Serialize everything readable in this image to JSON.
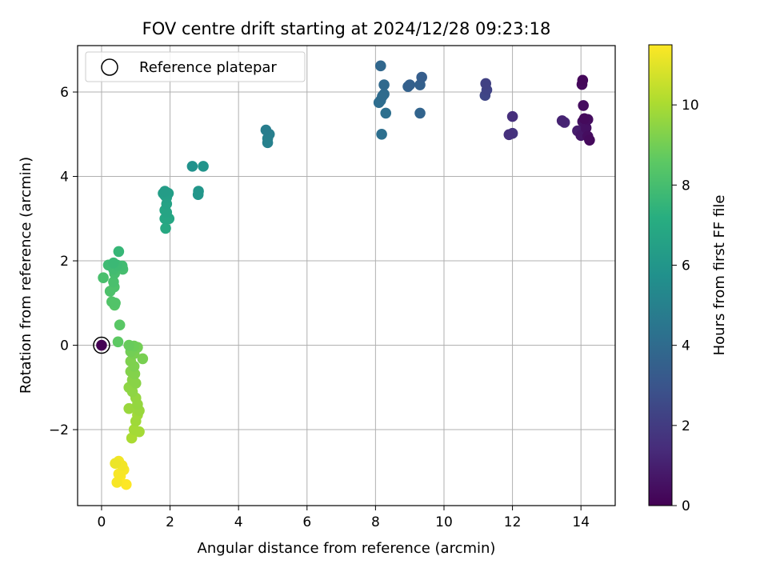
{
  "chart_data": {
    "type": "scatter",
    "title": "FOV centre drift starting at 2024/12/28 09:23:18",
    "xlabel": "Angular distance from reference (arcmin)",
    "ylabel": "Rotation from reference (arcmin)",
    "xlim": [
      -0.7,
      15.0
    ],
    "ylim": [
      -3.8,
      7.1
    ],
    "xticks": [
      0,
      2,
      4,
      6,
      8,
      10,
      12,
      14
    ],
    "xtick_labels": [
      "0",
      "2",
      "4",
      "6",
      "8",
      "10",
      "12",
      "14"
    ],
    "yticks": [
      -2,
      0,
      2,
      4,
      6
    ],
    "ytick_labels": [
      "−2",
      "0",
      "2",
      "4",
      "6"
    ],
    "grid": true,
    "legend": {
      "position": "upper-left",
      "label": "Reference platepar"
    },
    "reference_point": {
      "x": 0,
      "y": 0
    },
    "colorbar": {
      "label": "Hours from first FF file",
      "colormap": "viridis",
      "range": [
        0,
        11.5
      ],
      "ticks": [
        0,
        2,
        4,
        6,
        8,
        10
      ],
      "tick_labels": [
        "0",
        "2",
        "4",
        "6",
        "8",
        "10"
      ]
    },
    "points": [
      {
        "x": 14.05,
        "y": 6.28,
        "h": 0.2
      },
      {
        "x": 14.03,
        "y": 6.18,
        "h": 0.3
      },
      {
        "x": 14.07,
        "y": 5.68,
        "h": 0.4
      },
      {
        "x": 14.1,
        "y": 5.37,
        "h": 0.3
      },
      {
        "x": 14.2,
        "y": 5.35,
        "h": 0.4
      },
      {
        "x": 14.05,
        "y": 5.3,
        "h": 0.6
      },
      {
        "x": 14.15,
        "y": 5.15,
        "h": 0.5
      },
      {
        "x": 13.9,
        "y": 5.08,
        "h": 0.9
      },
      {
        "x": 14.0,
        "y": 4.97,
        "h": 0.7
      },
      {
        "x": 14.2,
        "y": 4.95,
        "h": 0.4
      },
      {
        "x": 14.25,
        "y": 4.86,
        "h": 0.3
      },
      {
        "x": 13.45,
        "y": 5.32,
        "h": 1.1
      },
      {
        "x": 13.52,
        "y": 5.28,
        "h": 1.2
      },
      {
        "x": 12.0,
        "y": 5.42,
        "h": 1.5
      },
      {
        "x": 11.9,
        "y": 4.99,
        "h": 1.6
      },
      {
        "x": 12.0,
        "y": 5.02,
        "h": 1.7
      },
      {
        "x": 11.22,
        "y": 6.2,
        "h": 2.2
      },
      {
        "x": 11.25,
        "y": 6.05,
        "h": 2.3
      },
      {
        "x": 11.2,
        "y": 5.92,
        "h": 2.4
      },
      {
        "x": 9.35,
        "y": 6.35,
        "h": 3.4
      },
      {
        "x": 9.3,
        "y": 6.17,
        "h": 3.5
      },
      {
        "x": 9.0,
        "y": 6.17,
        "h": 3.5
      },
      {
        "x": 8.95,
        "y": 6.13,
        "h": 3.6
      },
      {
        "x": 9.3,
        "y": 5.5,
        "h": 3.7
      },
      {
        "x": 8.15,
        "y": 6.62,
        "h": 3.8
      },
      {
        "x": 8.25,
        "y": 6.17,
        "h": 3.9
      },
      {
        "x": 8.25,
        "y": 5.95,
        "h": 4.0
      },
      {
        "x": 8.2,
        "y": 5.9,
        "h": 4.0
      },
      {
        "x": 8.15,
        "y": 5.8,
        "h": 4.1
      },
      {
        "x": 8.1,
        "y": 5.75,
        "h": 4.1
      },
      {
        "x": 8.3,
        "y": 5.5,
        "h": 4.2
      },
      {
        "x": 8.18,
        "y": 5.0,
        "h": 4.2
      },
      {
        "x": 4.8,
        "y": 5.1,
        "h": 4.8
      },
      {
        "x": 4.9,
        "y": 5.0,
        "h": 4.9
      },
      {
        "x": 4.85,
        "y": 4.9,
        "h": 5.0
      },
      {
        "x": 4.85,
        "y": 4.8,
        "h": 5.0
      },
      {
        "x": 2.65,
        "y": 4.24,
        "h": 5.8
      },
      {
        "x": 2.97,
        "y": 4.24,
        "h": 5.9
      },
      {
        "x": 2.83,
        "y": 3.65,
        "h": 6.0
      },
      {
        "x": 2.82,
        "y": 3.57,
        "h": 6.0
      },
      {
        "x": 1.85,
        "y": 3.65,
        "h": 6.3
      },
      {
        "x": 1.8,
        "y": 3.6,
        "h": 6.4
      },
      {
        "x": 1.95,
        "y": 3.6,
        "h": 6.4
      },
      {
        "x": 1.9,
        "y": 3.5,
        "h": 6.5
      },
      {
        "x": 1.85,
        "y": 3.55,
        "h": 6.5
      },
      {
        "x": 1.9,
        "y": 3.35,
        "h": 6.6
      },
      {
        "x": 1.85,
        "y": 3.2,
        "h": 6.7
      },
      {
        "x": 1.9,
        "y": 3.15,
        "h": 6.7
      },
      {
        "x": 1.85,
        "y": 3.0,
        "h": 6.8
      },
      {
        "x": 1.97,
        "y": 3.0,
        "h": 6.8
      },
      {
        "x": 1.87,
        "y": 2.77,
        "h": 6.9
      },
      {
        "x": 0.5,
        "y": 2.22,
        "h": 7.6
      },
      {
        "x": 0.2,
        "y": 1.9,
        "h": 7.8
      },
      {
        "x": 0.35,
        "y": 1.95,
        "h": 7.7
      },
      {
        "x": 0.45,
        "y": 1.9,
        "h": 7.8
      },
      {
        "x": 0.6,
        "y": 1.88,
        "h": 7.9
      },
      {
        "x": 0.35,
        "y": 1.8,
        "h": 7.9
      },
      {
        "x": 0.62,
        "y": 1.8,
        "h": 8.0
      },
      {
        "x": 0.38,
        "y": 1.7,
        "h": 8.0
      },
      {
        "x": 0.05,
        "y": 1.6,
        "h": 8.1
      },
      {
        "x": 0.35,
        "y": 1.5,
        "h": 8.1
      },
      {
        "x": 0.37,
        "y": 1.38,
        "h": 8.2
      },
      {
        "x": 0.25,
        "y": 1.28,
        "h": 8.2
      },
      {
        "x": 0.3,
        "y": 1.03,
        "h": 8.3
      },
      {
        "x": 0.4,
        "y": 1.0,
        "h": 8.3
      },
      {
        "x": 0.38,
        "y": 0.95,
        "h": 8.4
      },
      {
        "x": 0.53,
        "y": 0.48,
        "h": 8.5
      },
      {
        "x": 0.48,
        "y": 0.08,
        "h": 8.6
      },
      {
        "x": 0.8,
        "y": 0.0,
        "h": 8.8
      },
      {
        "x": 0.95,
        "y": -0.02,
        "h": 8.9
      },
      {
        "x": 1.05,
        "y": -0.05,
        "h": 9.0
      },
      {
        "x": 0.85,
        "y": -0.15,
        "h": 9.0
      },
      {
        "x": 0.95,
        "y": -0.2,
        "h": 9.1
      },
      {
        "x": 1.2,
        "y": -0.32,
        "h": 9.1
      },
      {
        "x": 0.85,
        "y": -0.38,
        "h": 9.2
      },
      {
        "x": 0.95,
        "y": -0.5,
        "h": 9.2
      },
      {
        "x": 0.85,
        "y": -0.62,
        "h": 9.3
      },
      {
        "x": 0.97,
        "y": -0.68,
        "h": 9.3
      },
      {
        "x": 0.9,
        "y": -0.82,
        "h": 9.4
      },
      {
        "x": 1.0,
        "y": -0.9,
        "h": 9.4
      },
      {
        "x": 0.8,
        "y": -1.0,
        "h": 9.5
      },
      {
        "x": 0.9,
        "y": -1.1,
        "h": 9.5
      },
      {
        "x": 1.0,
        "y": -1.25,
        "h": 9.6
      },
      {
        "x": 1.05,
        "y": -1.4,
        "h": 9.6
      },
      {
        "x": 0.8,
        "y": -1.5,
        "h": 9.7
      },
      {
        "x": 1.1,
        "y": -1.55,
        "h": 9.7
      },
      {
        "x": 1.05,
        "y": -1.65,
        "h": 9.8
      },
      {
        "x": 1.0,
        "y": -1.8,
        "h": 9.8
      },
      {
        "x": 0.95,
        "y": -2.0,
        "h": 9.9
      },
      {
        "x": 1.1,
        "y": -2.05,
        "h": 9.9
      },
      {
        "x": 0.88,
        "y": -2.2,
        "h": 10.0
      },
      {
        "x": 0.4,
        "y": -2.8,
        "h": 11.2
      },
      {
        "x": 0.5,
        "y": -2.75,
        "h": 11.3
      },
      {
        "x": 0.6,
        "y": -2.85,
        "h": 11.3
      },
      {
        "x": 0.65,
        "y": -2.95,
        "h": 11.4
      },
      {
        "x": 0.5,
        "y": -3.05,
        "h": 11.4
      },
      {
        "x": 0.55,
        "y": -3.1,
        "h": 11.5
      },
      {
        "x": 0.45,
        "y": -3.25,
        "h": 11.4
      },
      {
        "x": 0.72,
        "y": -3.3,
        "h": 11.5
      }
    ]
  }
}
